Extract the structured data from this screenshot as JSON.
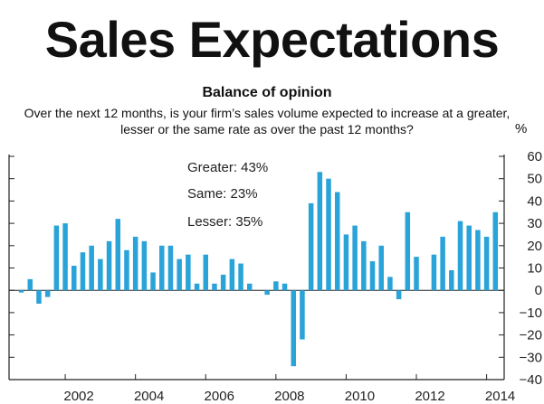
{
  "header": {
    "title": "Sales Expectations"
  },
  "chart_data": {
    "type": "bar",
    "title": "Balance of opinion",
    "subtitle_line1": "Over the next 12 months, is your firm’s sales volume expected to increase at a greater,",
    "subtitle_line2": "lesser or the same rate as over the past 12 months?",
    "ylabel": "%",
    "ylim": [
      -40,
      60
    ],
    "yticks": [
      -40,
      -30,
      -20,
      -10,
      0,
      10,
      20,
      30,
      40,
      50,
      60
    ],
    "ytick_labels": [
      "−40",
      "−30",
      "−20",
      "−10",
      "0",
      "10",
      "20",
      "30",
      "40",
      "50",
      "60"
    ],
    "xlim": [
      2000.4,
      2014.5
    ],
    "xticks": [
      2002,
      2004,
      2006,
      2008,
      2010,
      2012,
      2014
    ],
    "xtick_labels": [
      "2002",
      "2004",
      "2006",
      "2008",
      "2010",
      "2012",
      "2014"
    ],
    "bar_color": "#29a3d8",
    "grid": false,
    "annotations": [
      "Greater: 43%",
      "Same: 23%",
      "Lesser: 35%"
    ],
    "categories": [
      "2000Q4",
      "2001Q1",
      "2001Q2",
      "2001Q3",
      "2001Q4",
      "2002Q1",
      "2002Q2",
      "2002Q3",
      "2002Q4",
      "2003Q1",
      "2003Q2",
      "2003Q3",
      "2003Q4",
      "2004Q1",
      "2004Q2",
      "2004Q3",
      "2004Q4",
      "2005Q1",
      "2005Q2",
      "2005Q3",
      "2005Q4",
      "2006Q1",
      "2006Q2",
      "2006Q3",
      "2006Q4",
      "2007Q1",
      "2007Q2",
      "2007Q3",
      "2007Q4",
      "2008Q1",
      "2008Q2",
      "2008Q3",
      "2008Q4",
      "2009Q1",
      "2009Q2",
      "2009Q3",
      "2009Q4",
      "2010Q1",
      "2010Q2",
      "2010Q3",
      "2010Q4",
      "2011Q1",
      "2011Q2",
      "2011Q3",
      "2011Q4",
      "2012Q1",
      "2012Q2",
      "2012Q3",
      "2012Q4",
      "2013Q1",
      "2013Q2",
      "2013Q3",
      "2013Q4",
      "2014Q1",
      "2014Q2"
    ],
    "x": [
      2000.75,
      2001.0,
      2001.25,
      2001.5,
      2001.75,
      2002.0,
      2002.25,
      2002.5,
      2002.75,
      2003.0,
      2003.25,
      2003.5,
      2003.75,
      2004.0,
      2004.25,
      2004.5,
      2004.75,
      2005.0,
      2005.25,
      2005.5,
      2005.75,
      2006.0,
      2006.25,
      2006.5,
      2006.75,
      2007.0,
      2007.25,
      2007.5,
      2007.75,
      2008.0,
      2008.25,
      2008.5,
      2008.75,
      2009.0,
      2009.25,
      2009.5,
      2009.75,
      2010.0,
      2010.25,
      2010.5,
      2010.75,
      2011.0,
      2011.25,
      2011.5,
      2011.75,
      2012.0,
      2012.25,
      2012.5,
      2012.75,
      2013.0,
      2013.25,
      2013.5,
      2013.75,
      2014.0,
      2014.25
    ],
    "values": [
      -1,
      5,
      -6,
      -3,
      29,
      30,
      11,
      17,
      20,
      14,
      22,
      32,
      18,
      24,
      22,
      8,
      20,
      20,
      14,
      16,
      3,
      16,
      3,
      7,
      14,
      12,
      3,
      0,
      -2,
      4,
      3,
      -34,
      -22,
      39,
      53,
      50,
      44,
      25,
      29,
      22,
      13,
      20,
      6,
      -4,
      35,
      15,
      0,
      16,
      24,
      9,
      31,
      29,
      27,
      24,
      35
    ]
  }
}
